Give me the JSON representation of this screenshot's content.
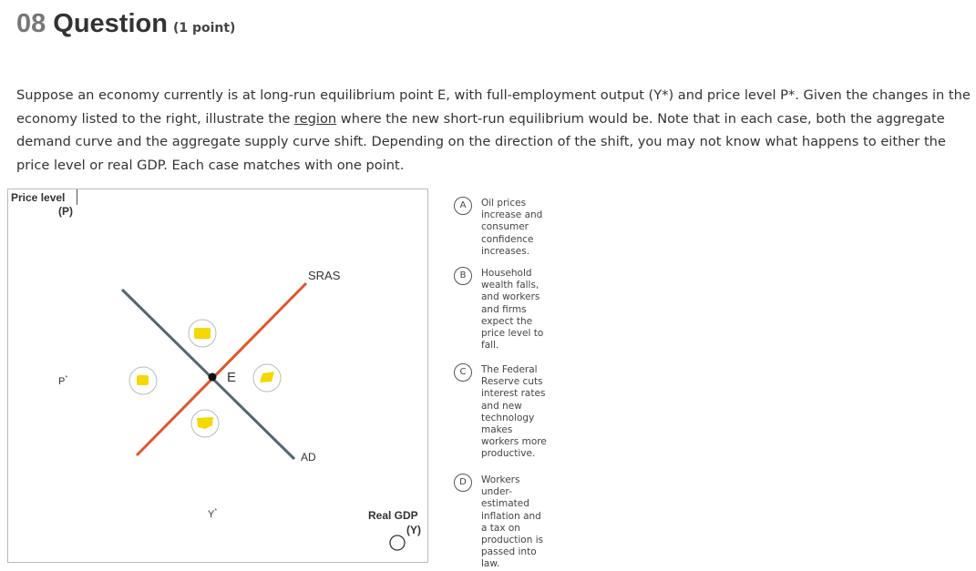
{
  "header": {
    "number": "08",
    "title": "Question",
    "points": "(1 point)"
  },
  "prompt": {
    "before": "Suppose an economy currently is at long-run equilibrium point E, with full-employment output (Y*) and price level P*. Given the changes in the economy listed to the right, illustrate the ",
    "link": "region",
    "after": " where the new short-run equilibrium would be. Note that in each case, both the aggregate demand curve and the aggregate supply curve shift. Depending on the direction of the shift, you may not know what happens to either the price level or real GDP. Each case matches with one point."
  },
  "diagram": {
    "y_axis_label": "Price level",
    "y_axis_unit": "(P)",
    "x_axis_label": "Real GDP",
    "x_axis_unit": "(Y)",
    "price_mark": "P",
    "output_mark": "Y",
    "star": "*",
    "supply_label": "SRAS",
    "demand_label": "AD",
    "point_label": "E"
  },
  "options": [
    {
      "letter": "A",
      "text": "Oil prices increase and consumer confidence increases."
    },
    {
      "letter": "B",
      "text": "Household wealth falls, and workers and firms expect the price level to fall."
    },
    {
      "letter": "C",
      "text": "The Federal Reserve cuts interest rates and new technology makes workers more productive."
    },
    {
      "letter": "D",
      "text": "Workers under-estimated inflation and a tax on production is passed into law."
    }
  ]
}
